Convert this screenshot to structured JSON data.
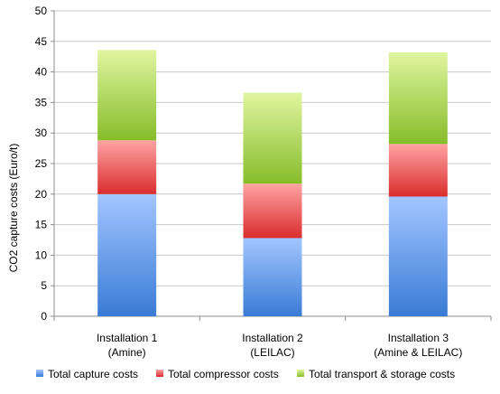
{
  "chart_data": {
    "type": "bar",
    "stacked": true,
    "title": "",
    "xlabel": "",
    "ylabel": "CO2 capture costs (Euro/t)",
    "ylim": [
      0,
      50
    ],
    "yticks": [
      0,
      5,
      10,
      15,
      20,
      25,
      30,
      35,
      40,
      45,
      50
    ],
    "grid": true,
    "legend_position": "bottom",
    "categories": [
      [
        "Installation 1",
        "(Amine)"
      ],
      [
        "Installation 2",
        "(LEILAC)"
      ],
      [
        "Installation 3",
        "(Amine & LEILAC)"
      ]
    ],
    "series": [
      {
        "name": "Total capture costs",
        "values": [
          20.0,
          12.8,
          19.6
        ],
        "color_dark": "#3a7bd5",
        "color_light": "#a3c6ff"
      },
      {
        "name": "Total compressor costs",
        "values": [
          8.8,
          8.9,
          8.6
        ],
        "color_dark": "#d92d2d",
        "color_light": "#ffa3a3"
      },
      {
        "name": "Total transport & storage costs",
        "values": [
          14.8,
          14.9,
          15.0
        ],
        "color_dark": "#86bd2a",
        "color_light": "#e0f5a0"
      }
    ]
  }
}
